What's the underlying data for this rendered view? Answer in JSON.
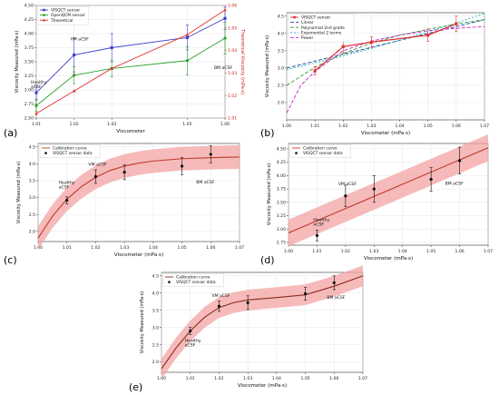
{
  "panels": [
    {
      "letter": "(a)"
    },
    {
      "letter": "(b)"
    },
    {
      "letter": "(c)"
    },
    {
      "letter": "(d)"
    },
    {
      "letter": "(e)"
    }
  ],
  "chart_data": [
    {
      "type": "line",
      "panel": "(a)",
      "xlabel": "Viscometer",
      "ylabel": "Viscosity Measured (mPa·s)",
      "y2label": "Theoretical Viscosity (mPa·s)",
      "xlim": [
        1.01,
        1.06
      ],
      "ylim": [
        2.5,
        4.5
      ],
      "y2lim": [
        1.01,
        1.06
      ],
      "x_ticks": [
        "1.01",
        "1.02",
        "1.03",
        "1.05",
        "1.06"
      ],
      "y_ticks": [
        "2.50",
        "2.75",
        "3.00",
        "3.25",
        "3.50",
        "3.75",
        "4.00",
        "4.25",
        "4.50"
      ],
      "y2_ticks": [
        "1.01",
        "1.02",
        "1.03",
        "1.04",
        "1.05",
        "1.06"
      ],
      "x": [
        1.01,
        1.02,
        1.03,
        1.05,
        1.06
      ],
      "series": [
        {
          "name": "VISQCT sensor",
          "color": "#4040d0",
          "marker": "square",
          "axis": "left",
          "values": [
            2.95,
            3.62,
            3.75,
            3.93,
            4.27
          ],
          "err": [
            0.12,
            0.3,
            0.25,
            0.22,
            0.2
          ]
        },
        {
          "name": "OpenQCM sensor",
          "color": "#2ca02c",
          "marker": "dot",
          "axis": "left",
          "values": [
            2.72,
            3.26,
            3.38,
            3.52,
            3.92
          ],
          "err": [
            0.1,
            0.15,
            0.15,
            0.25,
            0.28
          ]
        },
        {
          "name": "Theoretical",
          "color": "#e03030",
          "marker": "triangle",
          "axis": "right",
          "values": [
            1.012,
            1.022,
            1.032,
            1.047,
            1.058
          ],
          "err": []
        }
      ],
      "annotations": [
        "Healthy aCSF",
        "VM aCSF",
        "BM aCSF"
      ],
      "legend": "top-left"
    },
    {
      "type": "line",
      "panel": "(b)",
      "xlabel": "Viscometer (mPa·s)",
      "ylabel": "Viscosity Measured (mPa·s)",
      "xlim": [
        1.0,
        1.07
      ],
      "ylim": [
        1.5,
        4.6
      ],
      "x_ticks": [
        "1.00",
        "1.01",
        "1.02",
        "1.03",
        "1.04",
        "1.05",
        "1.06",
        "1.07"
      ],
      "y_ticks": [
        "2.0",
        "2.5",
        "3.0",
        "3.5",
        "4.0",
        "4.5"
      ],
      "data": {
        "name": "VISQCT sensor",
        "color": "#e03030",
        "x": [
          1.01,
          1.02,
          1.03,
          1.05,
          1.06
        ],
        "y": [
          2.92,
          3.62,
          3.75,
          3.95,
          4.28
        ],
        "err": [
          0.12,
          0.2,
          0.15,
          0.18,
          0.22
        ]
      },
      "fits": [
        {
          "name": "Linear",
          "color": "#1f3fa0",
          "dash": "4,2",
          "x": [
            1.0,
            1.07
          ],
          "y": [
            3.0,
            4.4
          ]
        },
        {
          "name": "Polynomial 2nd grade",
          "color": "#2ca02c",
          "dash": "4,2",
          "x": [
            1.0,
            1.01,
            1.02,
            1.03,
            1.04,
            1.05,
            1.06,
            1.07
          ],
          "y": [
            2.5,
            3.02,
            3.42,
            3.72,
            3.95,
            4.12,
            4.27,
            4.4
          ]
        },
        {
          "name": "Exponential 2 terms",
          "color": "#1fb0c0",
          "dash": "2,2",
          "x": [
            1.0,
            1.01,
            1.02,
            1.03,
            1.04,
            1.05,
            1.06,
            1.07
          ],
          "y": [
            2.95,
            3.15,
            3.35,
            3.57,
            3.8,
            4.05,
            4.3,
            4.58
          ]
        },
        {
          "name": "Power",
          "color": "#d020d0",
          "dash": "4,2",
          "x": [
            1.0,
            1.005,
            1.01,
            1.02,
            1.03,
            1.04,
            1.05,
            1.06,
            1.07
          ],
          "y": [
            1.7,
            2.5,
            2.9,
            3.5,
            3.78,
            3.95,
            4.08,
            4.15,
            4.2
          ]
        }
      ],
      "legend": "top-left"
    },
    {
      "type": "line",
      "panel": "(c)",
      "xlabel": "Viscometer (mPa·s)",
      "ylabel": "Viscosity Measured (mPa·s)",
      "xlim": [
        1.0,
        1.07
      ],
      "ylim": [
        1.7,
        4.6
      ],
      "x_ticks": [
        "1.00",
        "1.01",
        "1.02",
        "1.03",
        "1.04",
        "1.05",
        "1.06",
        "1.07"
      ],
      "y_ticks": [
        "2.0",
        "2.5",
        "3.0",
        "3.5",
        "4.0",
        "4.5"
      ],
      "curve": {
        "name": "Calibration curve",
        "color": "#c0392b",
        "band": "#f3a3a3",
        "x": [
          1.0,
          1.005,
          1.01,
          1.015,
          1.02,
          1.025,
          1.03,
          1.035,
          1.04,
          1.05,
          1.06,
          1.07
        ],
        "y": [
          1.8,
          2.45,
          2.95,
          3.32,
          3.6,
          3.8,
          3.93,
          4.02,
          4.08,
          4.15,
          4.18,
          4.2
        ],
        "band_width": 0.35
      },
      "points": {
        "name": "VISQCT sensor data",
        "color": "#111111",
        "x": [
          1.01,
          1.02,
          1.03,
          1.05,
          1.06
        ],
        "y": [
          2.92,
          3.62,
          3.75,
          3.93,
          4.28
        ],
        "err": [
          0.1,
          0.2,
          0.22,
          0.25,
          0.25
        ]
      },
      "annotations": [
        "Healthy aCSF",
        "VM aCSF",
        "BM aCSF"
      ],
      "legend": "top-left"
    },
    {
      "type": "line",
      "panel": "(d)",
      "xlabel": "Viscometer (mPa·s)",
      "ylabel": "Viscosity Measured (mPa·s)",
      "xlim": [
        1.0,
        1.07
      ],
      "ylim": [
        2.7,
        4.6
      ],
      "x_ticks": [
        "1.00",
        "1.01",
        "1.02",
        "1.03",
        "1.04",
        "1.05",
        "1.06",
        "1.07"
      ],
      "y_ticks": [
        "2.75",
        "3.00",
        "3.25",
        "3.50",
        "3.75",
        "4.00",
        "4.25",
        "4.50"
      ],
      "curve": {
        "name": "Calibration curve",
        "color": "#c0392b",
        "band": "#f3a3a3",
        "x": [
          1.0,
          1.07
        ],
        "y": [
          2.93,
          4.52
        ],
        "band_width": 0.25
      },
      "points": {
        "name": "VISQCT sensor data",
        "color": "#111111",
        "x": [
          1.01,
          1.02,
          1.03,
          1.05,
          1.06
        ],
        "y": [
          2.88,
          3.62,
          3.75,
          3.93,
          4.28
        ],
        "err": [
          0.1,
          0.2,
          0.25,
          0.22,
          0.25
        ]
      },
      "annotations": [
        "Healthy aCSF",
        "VM aCSF",
        "BM aCSF"
      ],
      "legend": "top-left"
    },
    {
      "type": "line",
      "panel": "(e)",
      "xlabel": "Viscometer (mPa·s)",
      "ylabel": "Viscosity Measured (mPa·s)",
      "xlim": [
        1.0,
        1.07
      ],
      "ylim": [
        1.7,
        4.6
      ],
      "x_ticks": [
        "1.00",
        "1.01",
        "1.02",
        "1.03",
        "1.04",
        "1.05",
        "1.06",
        "1.07"
      ],
      "y_ticks": [
        "2.0",
        "2.5",
        "3.0",
        "3.5",
        "4.0",
        "4.5"
      ],
      "curve": {
        "name": "Calibration curve",
        "color": "#8b2d1f",
        "band": "#f3a3a3",
        "x": [
          1.0,
          1.005,
          1.01,
          1.015,
          1.02,
          1.025,
          1.03,
          1.04,
          1.05,
          1.06,
          1.07
        ],
        "y": [
          1.8,
          2.4,
          2.9,
          3.3,
          3.58,
          3.72,
          3.8,
          3.87,
          3.95,
          4.2,
          4.5
        ],
        "band_width": 0.3
      },
      "points": {
        "name": "VISQCT sensor data",
        "color": "#111111",
        "x": [
          1.01,
          1.02,
          1.03,
          1.05,
          1.06
        ],
        "y": [
          2.9,
          3.62,
          3.72,
          3.98,
          4.3
        ],
        "err": [
          0.1,
          0.15,
          0.2,
          0.18,
          0.2
        ]
      },
      "annotations": [
        "Healthy aCSF",
        "VM aCSF",
        "BM aCSF"
      ],
      "legend": "top-left"
    }
  ]
}
